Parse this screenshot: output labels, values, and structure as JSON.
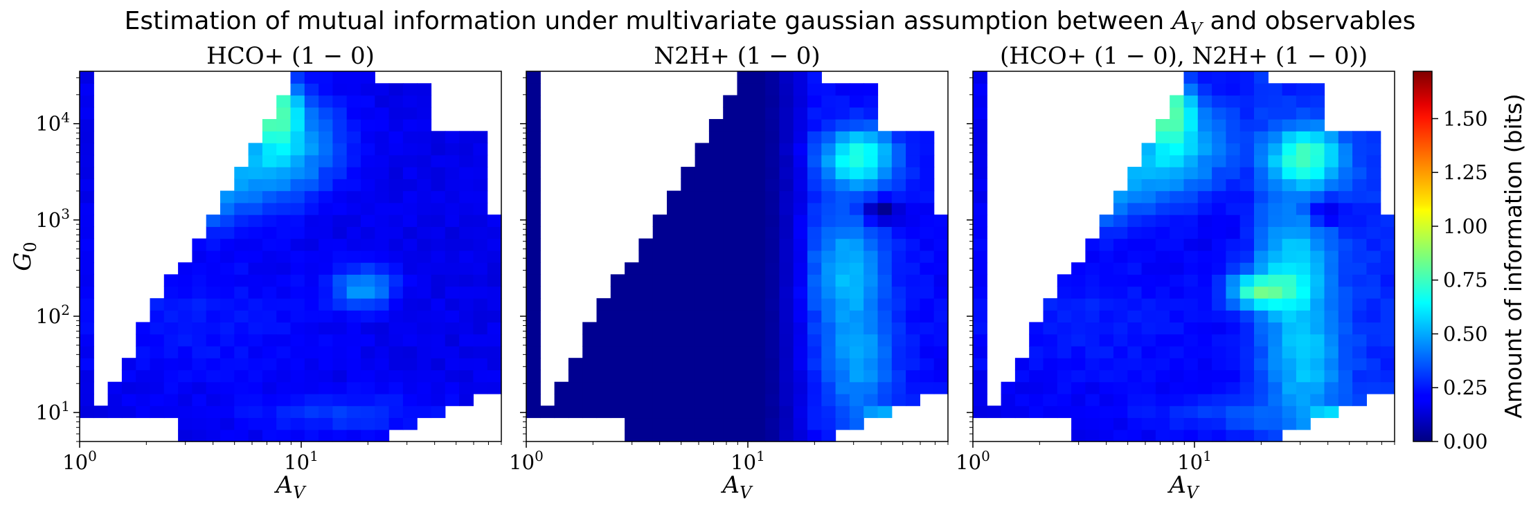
{
  "figure": {
    "title": "Estimation of mutual information under multivariate gaussian assumption between A_V and observables"
  },
  "colorbar": {
    "label": "Amount of information (bits)",
    "colormap": "jet",
    "range": [
      0,
      1.72
    ],
    "ticks": [
      "0.00",
      "0.25",
      "0.50",
      "0.75",
      "1.00",
      "1.25",
      "1.50"
    ],
    "tick_values": [
      0,
      0.25,
      0.5,
      0.75,
      1.0,
      1.25,
      1.5
    ]
  },
  "chart_data": [
    {
      "type": "heatmap",
      "title": "HCO+ (1 − 0)",
      "xlabel": "A_V",
      "ylabel": "G_0",
      "xscale": "log",
      "yscale": "log",
      "xlim": [
        1,
        80
      ],
      "ylim": [
        5,
        35000
      ],
      "xticks": [
        "10^0",
        "10^1"
      ],
      "yticks": [
        "10^1",
        "10^2",
        "10^3",
        "10^4"
      ],
      "color_range": [
        0,
        1.72
      ],
      "grid": "30 log-spaced A_V bins × 31 log-spaced G_0 bins",
      "blobs": [
        {
          "logAv": 0.88,
          "logG0": 4.15,
          "sx": 0.09,
          "sy": 0.25,
          "amp": 0.56
        },
        {
          "logAv": 0.85,
          "logG0": 3.55,
          "sx": 0.18,
          "sy": 0.28,
          "amp": 0.3
        },
        {
          "logAv": 0.5,
          "logG0": 3.25,
          "sx": 0.16,
          "sy": 0.22,
          "amp": 0.34
        },
        {
          "logAv": 1.28,
          "logG0": 2.3,
          "sx": 0.1,
          "sy": 0.15,
          "amp": 0.3
        },
        {
          "logAv": 1.05,
          "logG0": 3.9,
          "sx": 0.15,
          "sy": 0.3,
          "amp": 0.14
        },
        {
          "logAv": 1.2,
          "logG0": 1.0,
          "sx": 0.3,
          "sy": 0.15,
          "amp": 0.12
        },
        {
          "logAv": 0.5,
          "logG0": 2.0,
          "sx": 0.4,
          "sy": 0.5,
          "amp": 0.07
        }
      ],
      "base": 0.18,
      "minimum": 0.03
    },
    {
      "type": "heatmap",
      "title": "N2H+ (1 − 0)",
      "xlabel": "A_V",
      "xscale": "log",
      "yscale": "log",
      "xlim": [
        1,
        80
      ],
      "ylim": [
        5,
        35000
      ],
      "xticks": [
        "10^0",
        "10^1"
      ],
      "color_range": [
        0,
        1.72
      ],
      "grid": "30 log-spaced A_V bins × 31 log-spaced G_0 bins",
      "blobs": [
        {
          "logAv": 1.5,
          "logG0": 3.65,
          "sx": 0.12,
          "sy": 0.22,
          "amp": 0.48
        },
        {
          "logAv": 1.66,
          "logG0": 0.9,
          "sx": 0.1,
          "sy": 0.1,
          "amp": 0.45
        },
        {
          "logAv": 1.45,
          "logG0": 2.5,
          "sx": 0.12,
          "sy": 0.45,
          "amp": 0.3
        },
        {
          "logAv": 1.5,
          "logG0": 1.5,
          "sx": 0.12,
          "sy": 0.4,
          "amp": 0.25
        },
        {
          "logAv": 1.6,
          "logG0": 3.1,
          "sx": 0.06,
          "sy": 0.08,
          "amp": -0.3
        }
      ],
      "ramp_start_logAv": 1.05,
      "ramp_width": 0.25,
      "base": 0.22,
      "minimum": 0.03
    },
    {
      "type": "heatmap",
      "title": "(HCO+ (1 − 0), N2H+ (1 − 0))",
      "xlabel": "A_V",
      "xscale": "log",
      "yscale": "log",
      "xlim": [
        1,
        80
      ],
      "ylim": [
        5,
        35000
      ],
      "xticks": [
        "10^0",
        "10^1"
      ],
      "color_range": [
        0,
        1.72
      ],
      "grid": "30 log-spaced A_V bins × 31 log-spaced G_0 bins",
      "combined_from": [
        0,
        1
      ],
      "extra_blobs": [
        {
          "logAv": 1.32,
          "logG0": 2.25,
          "sx": 0.1,
          "sy": 0.12,
          "amp": 0.25
        }
      ]
    }
  ]
}
